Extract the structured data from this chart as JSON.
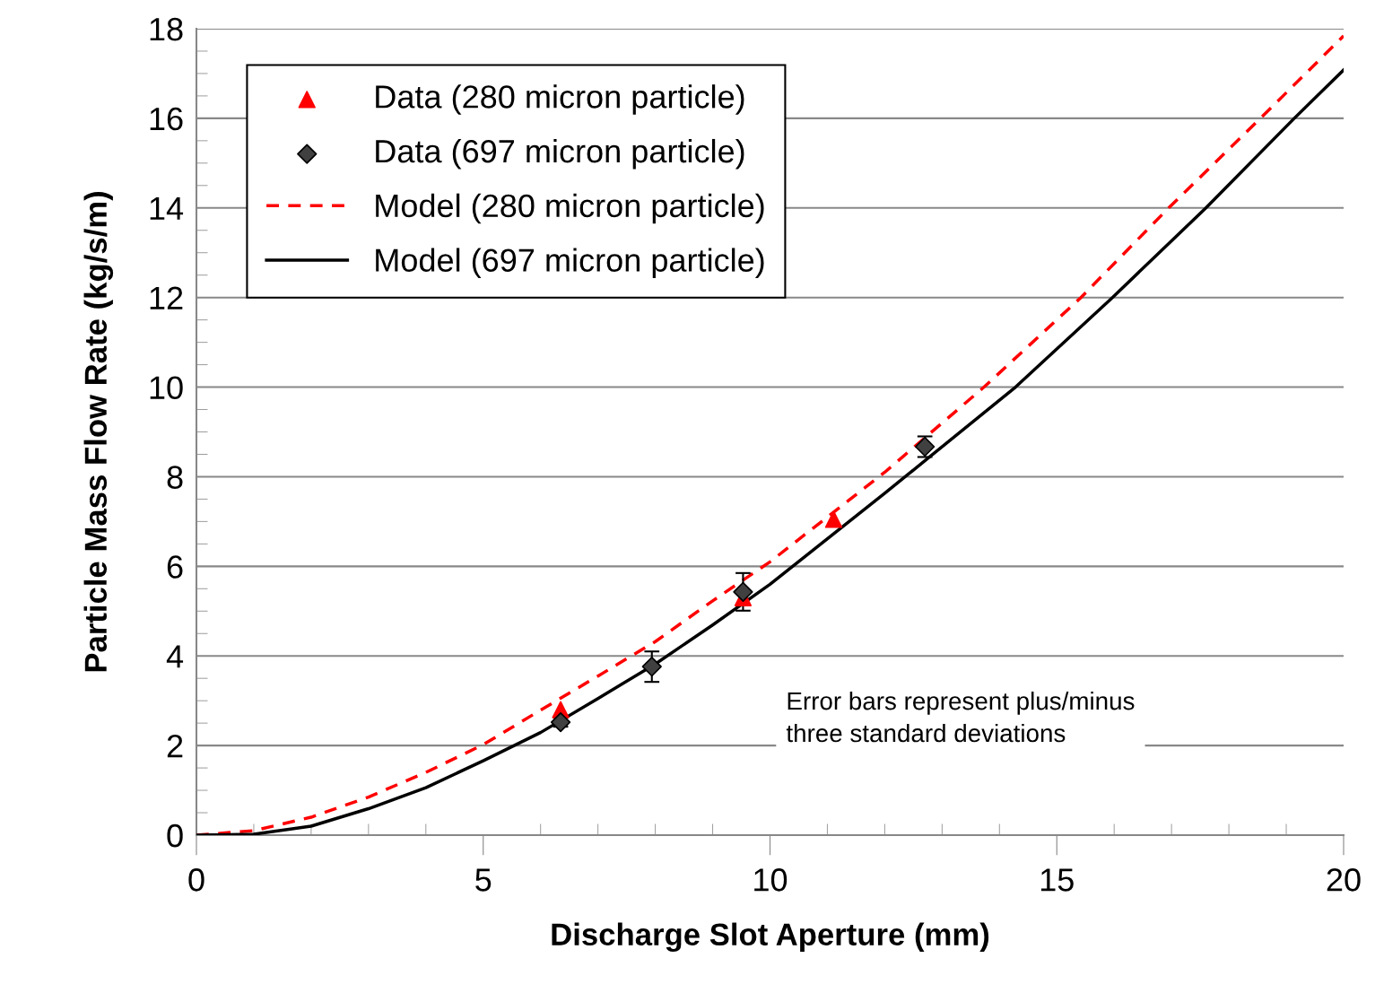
{
  "chart_data": {
    "type": "scatter",
    "xlabel": "Discharge Slot Aperture (mm)",
    "ylabel": "Particle Mass Flow Rate (kg/s/m)",
    "xlim": [
      0,
      20
    ],
    "ylim": [
      0,
      18
    ],
    "xticks": [
      0,
      5,
      10,
      15,
      20
    ],
    "yticks": [
      0,
      2,
      4,
      6,
      8,
      10,
      12,
      14,
      16,
      18
    ],
    "grid": "y",
    "legend": "top left",
    "annotations": [
      "Error bars represent plus/minus\nthree standard deviations"
    ],
    "series": [
      {
        "name": "Data (280 micron particle)",
        "marker": "triangle",
        "color": "#ff0000",
        "x": [
          6.35,
          9.53,
          11.11
        ],
        "values": [
          2.8,
          5.3,
          7.05
        ]
      },
      {
        "name": "Data (697 micron particle)",
        "marker": "diamond",
        "color": "#404040",
        "x": [
          6.35,
          7.94,
          9.53,
          12.7
        ],
        "values": [
          2.52,
          3.76,
          5.43,
          8.67
        ],
        "errors": [
          0.1,
          0.34,
          0.42,
          0.23
        ]
      },
      {
        "name": "Model (280 micron particle)",
        "type": "line",
        "line_style": "dashed",
        "marker": "none",
        "color": "#ff0000",
        "x": [
          0,
          1,
          2,
          3,
          4,
          5,
          6,
          7,
          8,
          9,
          10,
          12,
          13.73,
          15.42,
          16.95,
          18.55,
          20
        ],
        "values": [
          0,
          0.1,
          0.4,
          0.85,
          1.4,
          2.02,
          2.79,
          3.55,
          4.32,
          5.23,
          6.1,
          8.1,
          10,
          12,
          14,
          16,
          17.84
        ]
      },
      {
        "name": "Model (697 micron particle)",
        "type": "line",
        "line_style": "solid",
        "marker": "none",
        "color": "#000000",
        "x": [
          0,
          1,
          2,
          3,
          4,
          5,
          6,
          7,
          8,
          9,
          10,
          12,
          14.28,
          15.97,
          17.6,
          19.14,
          20
        ],
        "values": [
          0,
          0.02,
          0.2,
          0.59,
          1.06,
          1.66,
          2.29,
          3.05,
          3.82,
          4.69,
          5.6,
          7.63,
          10,
          12,
          14,
          16,
          17.08
        ]
      }
    ]
  }
}
